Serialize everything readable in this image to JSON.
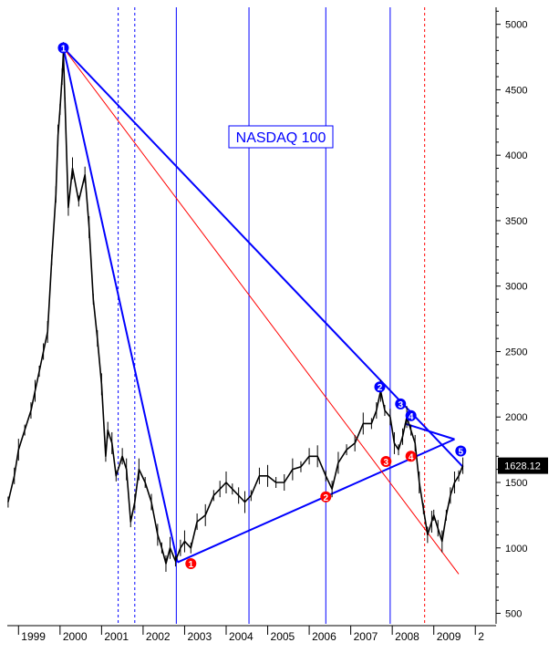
{
  "chart_data": {
    "type": "line",
    "title": "NASDAQ 100",
    "x_tick_labels": [
      "1999",
      "2000",
      "2001",
      "2002",
      "2003",
      "2004",
      "2005",
      "2006",
      "2007",
      "2008",
      "2009",
      "2"
    ],
    "y_tick_labels": [
      "500",
      "1000",
      "1500",
      "2000",
      "2500",
      "3000",
      "3500",
      "4000",
      "4500",
      "5000"
    ],
    "ylim": [
      420,
      5130
    ],
    "xlim": [
      1998.73,
      2010.5
    ],
    "last_price_label": "1628.12",
    "last_price": 1628.12,
    "grid": false,
    "series": [
      {
        "points": [
          [
            1998.75,
            1350
          ],
          [
            1998.9,
            1550
          ],
          [
            1999.0,
            1750
          ],
          [
            1999.15,
            1900
          ],
          [
            1999.3,
            2050
          ],
          [
            1999.4,
            2200
          ],
          [
            1999.5,
            2350
          ],
          [
            1999.6,
            2500
          ],
          [
            1999.7,
            2650
          ],
          [
            1999.8,
            3200
          ],
          [
            1999.9,
            3700
          ],
          [
            1999.95,
            4150
          ],
          [
            2000.0,
            4350
          ],
          [
            2000.05,
            4600
          ],
          [
            2000.08,
            4780
          ],
          [
            2000.12,
            4400
          ],
          [
            2000.2,
            3600
          ],
          [
            2000.3,
            3900
          ],
          [
            2000.45,
            3650
          ],
          [
            2000.6,
            3850
          ],
          [
            2000.7,
            3450
          ],
          [
            2000.8,
            2900
          ],
          [
            2000.9,
            2600
          ],
          [
            2001.0,
            2250
          ],
          [
            2001.1,
            1700
          ],
          [
            2001.15,
            1900
          ],
          [
            2001.25,
            1800
          ],
          [
            2001.35,
            1550
          ],
          [
            2001.5,
            1700
          ],
          [
            2001.6,
            1600
          ],
          [
            2001.7,
            1200
          ],
          [
            2001.8,
            1350
          ],
          [
            2001.9,
            1600
          ],
          [
            2002.05,
            1500
          ],
          [
            2002.2,
            1350
          ],
          [
            2002.35,
            1100
          ],
          [
            2002.45,
            1000
          ],
          [
            2002.55,
            880
          ],
          [
            2002.65,
            1000
          ],
          [
            2002.78,
            900
          ],
          [
            2002.9,
            1000
          ],
          [
            2003.0,
            1050
          ],
          [
            2003.15,
            1000
          ],
          [
            2003.3,
            1200
          ],
          [
            2003.5,
            1250
          ],
          [
            2003.7,
            1400
          ],
          [
            2003.85,
            1450
          ],
          [
            2004.0,
            1500
          ],
          [
            2004.15,
            1450
          ],
          [
            2004.3,
            1400
          ],
          [
            2004.45,
            1350
          ],
          [
            2004.6,
            1400
          ],
          [
            2004.8,
            1550
          ],
          [
            2005.0,
            1550
          ],
          [
            2005.2,
            1500
          ],
          [
            2005.4,
            1500
          ],
          [
            2005.6,
            1600
          ],
          [
            2005.8,
            1620
          ],
          [
            2006.0,
            1700
          ],
          [
            2006.2,
            1700
          ],
          [
            2006.4,
            1550
          ],
          [
            2006.55,
            1450
          ],
          [
            2006.7,
            1650
          ],
          [
            2006.9,
            1750
          ],
          [
            2007.1,
            1800
          ],
          [
            2007.3,
            1950
          ],
          [
            2007.5,
            1950
          ],
          [
            2007.62,
            2050
          ],
          [
            2007.72,
            2200
          ],
          [
            2007.82,
            2050
          ],
          [
            2007.95,
            2000
          ],
          [
            2008.05,
            1800
          ],
          [
            2008.15,
            1750
          ],
          [
            2008.25,
            1850
          ],
          [
            2008.35,
            2000
          ],
          [
            2008.45,
            1900
          ],
          [
            2008.55,
            1800
          ],
          [
            2008.65,
            1500
          ],
          [
            2008.75,
            1300
          ],
          [
            2008.85,
            1100
          ],
          [
            2008.95,
            1200
          ],
          [
            2009.0,
            1250
          ],
          [
            2009.1,
            1150
          ],
          [
            2009.2,
            1050
          ],
          [
            2009.3,
            1250
          ],
          [
            2009.4,
            1400
          ],
          [
            2009.5,
            1500
          ],
          [
            2009.6,
            1550
          ],
          [
            2009.7,
            1628
          ]
        ]
      }
    ],
    "trend_lines": [
      {
        "color": "#0000ff",
        "style": "solid",
        "from": [
          2000.08,
          4820
        ],
        "to": [
          2002.83,
          890
        ]
      },
      {
        "color": "#0000ff",
        "style": "solid",
        "from": [
          2000.08,
          4820
        ],
        "to": [
          2009.7,
          1620
        ]
      },
      {
        "color": "#0000ff",
        "style": "solid",
        "from": [
          2002.83,
          890
        ],
        "to": [
          2009.5,
          1830
        ]
      },
      {
        "color": "#0000ff",
        "style": "solid",
        "from": [
          2008.3,
          1950
        ],
        "to": [
          2009.5,
          1830
        ]
      },
      {
        "color": "#ff0000",
        "style": "solid",
        "from": [
          2000.08,
          4820
        ],
        "to": [
          2009.6,
          800
        ]
      }
    ],
    "vertical_lines": [
      {
        "x": 2001.4,
        "color": "#0000ff",
        "style": "dashed"
      },
      {
        "x": 2001.8,
        "color": "#0000ff",
        "style": "dashed"
      },
      {
        "x": 2002.8,
        "color": "#0000ff",
        "style": "solid"
      },
      {
        "x": 2004.55,
        "color": "#0000ff",
        "style": "solid"
      },
      {
        "x": 2006.4,
        "color": "#0000ff",
        "style": "solid"
      },
      {
        "x": 2007.95,
        "color": "#0000ff",
        "style": "solid"
      },
      {
        "x": 2008.78,
        "color": "#ff0000",
        "style": "dashed"
      }
    ],
    "markers": [
      {
        "label": "1",
        "x": 2000.08,
        "y": 4820,
        "color": "#0000ff"
      },
      {
        "label": "2",
        "x": 2007.7,
        "y": 2230,
        "color": "#0000ff"
      },
      {
        "label": "3",
        "x": 2008.2,
        "y": 2100,
        "color": "#0000ff"
      },
      {
        "label": "4",
        "x": 2008.45,
        "y": 2010,
        "color": "#0000ff"
      },
      {
        "label": "5",
        "x": 2009.65,
        "y": 1740,
        "color": "#0000ff"
      },
      {
        "label": "1",
        "x": 2003.15,
        "y": 880,
        "color": "#ff0000"
      },
      {
        "label": "2",
        "x": 2006.4,
        "y": 1390,
        "color": "#ff0000"
      },
      {
        "label": "3",
        "x": 2007.85,
        "y": 1660,
        "color": "#ff0000"
      },
      {
        "label": "4",
        "x": 2008.45,
        "y": 1700,
        "color": "#ff0000"
      }
    ],
    "colors": {
      "price": "#000000",
      "blue": "#0000ff",
      "red": "#ff0000",
      "title_box": "#0000ff"
    }
  }
}
